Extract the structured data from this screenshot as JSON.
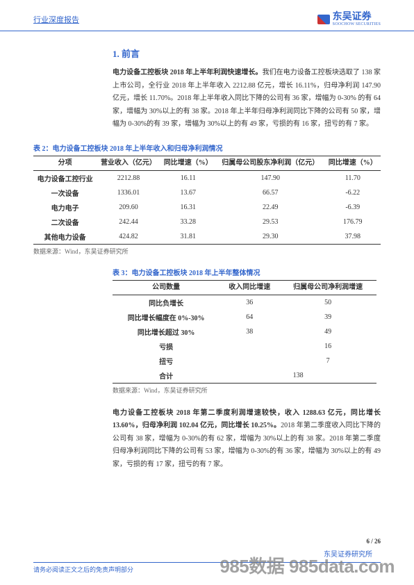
{
  "header": {
    "left": "行业深度报告",
    "logo_cn": "东吴证券",
    "logo_en": "SOOCHOW SECURITIES"
  },
  "section_title": "1.  前言",
  "para1_lead": "电力设备工控板块 2018 年上半年利润快速增长。",
  "para1_body": "我们在电力设备工控板块选取了 138 家上市公司，全行业 2018 年上半年收入 2212.88 亿元，增长 16.11%，归母净利润 147.90 亿元，增长 11.70%。2018 年上半年收入同比下降的公司有 36 家，增幅为 0-30% 的有 64 家，增幅为 30%以上的有 38 家。2018 年上半年归母净利润同比下降的公司有 50 家，增幅为 0-30%的有 39 家，增幅为 30%以上的有 49 家，亏损的有 16 家，扭亏的有 7 家。",
  "table2": {
    "title": "表 2：电力设备工控板块 2018 年上半年收入和归母净利润情况",
    "headers": [
      "分项",
      "营业收入（亿元）",
      "同比增速（%）",
      "归属母公司股东净利润（亿元）",
      "同比增速（%）"
    ],
    "rows": [
      [
        "电力设备工控行业",
        "2212.88",
        "16.11",
        "147.90",
        "11.70"
      ],
      [
        "一次设备",
        "1336.01",
        "13.67",
        "66.57",
        "-6.22"
      ],
      [
        "电力电子",
        "209.60",
        "16.31",
        "22.49",
        "-6.39"
      ],
      [
        "二次设备",
        "242.44",
        "33.28",
        "29.53",
        "176.79"
      ],
      [
        "其他电力设备",
        "424.82",
        "31.81",
        "29.30",
        "37.98"
      ]
    ],
    "source": "数据来源：Wind，东吴证券研究所"
  },
  "table3": {
    "title": "表 3：电力设备工控板块 2018 年上半年整体情况",
    "headers": [
      "公司数量",
      "收入同比增速",
      "归属母公司净利润增速"
    ],
    "rows": [
      [
        "同比负增长",
        "36",
        "50"
      ],
      [
        "同比增长幅度在 0%-30%",
        "64",
        "39"
      ],
      [
        "同比增长超过 30%",
        "38",
        "49"
      ],
      [
        "亏损",
        "",
        "16"
      ],
      [
        "扭亏",
        "",
        "7"
      ],
      [
        "合计",
        "138",
        ""
      ]
    ],
    "source": "数据来源：Wind，东吴证券研究所"
  },
  "para2_lead": "电力设备工控板块 2018 年第二季度利润增速较快，收入 1288.63 亿元，同比增长 13.60%，归母净利润 102.04 亿元，同比增长 10.25%。",
  "para2_body": "2018 年第二季度收入同比下降的公司有 38 家，增幅为 0-30%的有 62 家，增幅为 30%以上的有 38 家。2018 年第二季度归母净利润同比下降的公司有 53 家，增幅为 0-30%的有 36 家，增幅为 30%以上的有 49 家，亏损的有 17 家，扭亏的有 7 家。",
  "page_num": "6 / 26",
  "footer_inst": "东吴证券研究所",
  "footer_disclaimer": "请务必阅读正文之后的免责声明部分",
  "watermark": "985数据 985data.com",
  "table3_sum_colspan_val": "138"
}
